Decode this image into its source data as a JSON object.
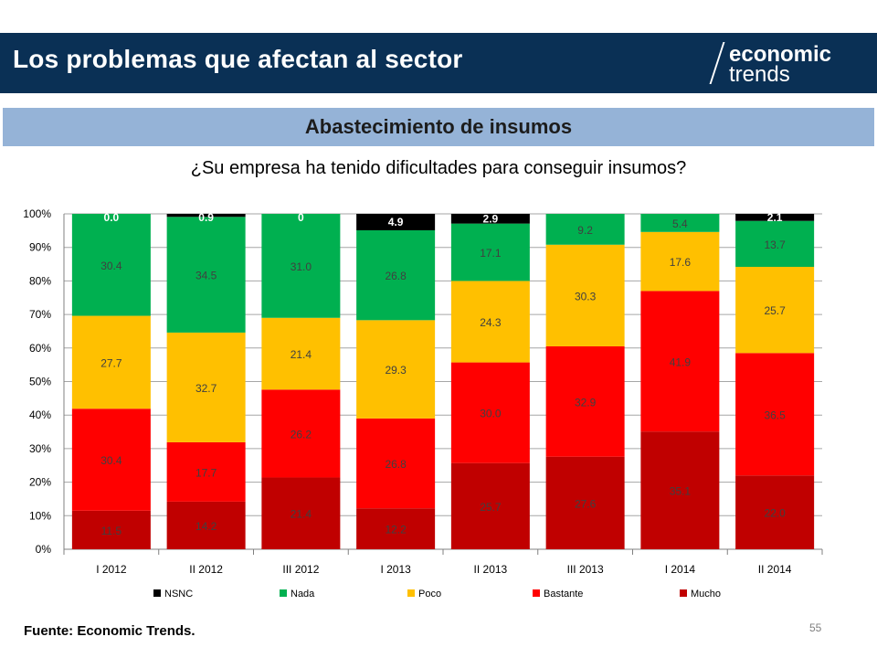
{
  "header": {
    "title": "Los problemas que afectan al sector",
    "logo_line1": "economic",
    "logo_line2": "trends"
  },
  "section": {
    "title": "Abastecimiento de insumos"
  },
  "footer": {
    "source": "Fuente: Economic Trends.",
    "page_number": "55"
  },
  "colors": {
    "header_bg": "#0a3055",
    "section_bg": "#95b3d7",
    "NSNC": "#000000",
    "Nada": "#00b050",
    "Poco": "#ffc000",
    "Bastante": "#ff0000",
    "Mucho": "#c00000"
  },
  "chart_data": {
    "type": "bar",
    "stacked": true,
    "title": "¿Su empresa ha tenido dificultades para conseguir insumos?",
    "categories": [
      "I 2012",
      "II 2012",
      "III 2012",
      "I 2013",
      "II 2013",
      "III 2013",
      "I 2014",
      "II 2014"
    ],
    "series": [
      {
        "name": "Mucho",
        "values": [
          11.5,
          14.2,
          21.4,
          12.2,
          25.7,
          27.6,
          35.1,
          22.0
        ],
        "labels": [
          "11.5",
          "14.2",
          "21.4",
          "12.2",
          "25.7",
          "27.6",
          "35.1",
          "22.0"
        ]
      },
      {
        "name": "Bastante",
        "values": [
          30.4,
          17.7,
          26.2,
          26.8,
          30.0,
          32.9,
          41.9,
          36.5
        ],
        "labels": [
          "30.4",
          "17.7",
          "26.2",
          "26.8",
          "30.0",
          "32.9",
          "41.9",
          "36.5"
        ]
      },
      {
        "name": "Poco",
        "values": [
          27.7,
          32.7,
          21.4,
          29.3,
          24.3,
          30.3,
          17.6,
          25.7
        ],
        "labels": [
          "27.7",
          "32.7",
          "21.4",
          "29.3",
          "24.3",
          "30.3",
          "17.6",
          "25.7"
        ]
      },
      {
        "name": "Nada",
        "values": [
          30.4,
          34.5,
          31.0,
          26.8,
          17.1,
          9.2,
          5.4,
          13.7
        ],
        "labels": [
          "30.4",
          "34.5",
          "31.0",
          "26.8",
          "17.1",
          "9.2",
          "5.4",
          "13.7"
        ]
      },
      {
        "name": "NSNC",
        "values": [
          0.0,
          0.9,
          0,
          4.9,
          2.9,
          0,
          0,
          2.1
        ],
        "labels": [
          "0.0",
          "0.9",
          "0",
          "4.9",
          "2.9",
          "",
          "",
          "2.1"
        ]
      }
    ],
    "legend_order": [
      "NSNC",
      "Nada",
      "Poco",
      "Bastante",
      "Mucho"
    ],
    "yticks": [
      "0%",
      "10%",
      "20%",
      "30%",
      "40%",
      "50%",
      "60%",
      "70%",
      "80%",
      "90%",
      "100%"
    ],
    "ylim": [
      0,
      100
    ],
    "grid": true,
    "legend_position": "bottom"
  }
}
